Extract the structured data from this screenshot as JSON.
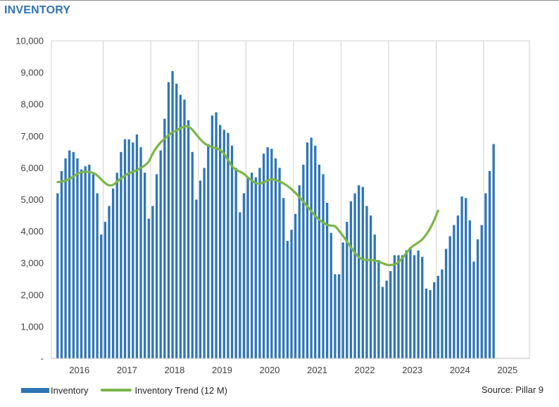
{
  "title": "INVENTORY",
  "source": "Source: Pillar 9",
  "colors": {
    "bars": "#2E75B6",
    "trend": "#7AB648",
    "title": "#2E75B6",
    "grid": "#d0d0d0"
  },
  "legend": {
    "bar_label": "Inventory",
    "line_label": "Inventory Trend (12 M)"
  },
  "chart_data": {
    "type": "bar",
    "title": "INVENTORY",
    "xlabel": "",
    "ylabel": "",
    "ylim": [
      0,
      10000
    ],
    "grid": "vertical lines at each year",
    "legend_position": "bottom",
    "y_ticks": [
      "-",
      "1,000",
      "2,000",
      "3,000",
      "4,000",
      "5,000",
      "6,000",
      "7,000",
      "8,000",
      "9,000",
      "10,000"
    ],
    "x_ticks": [
      "2016",
      "2017",
      "2018",
      "2019",
      "2020",
      "2021",
      "2022",
      "2023",
      "2024",
      "2025"
    ],
    "x_start": "2016-01",
    "series": [
      {
        "name": "Inventory",
        "type": "bar",
        "values": [
          5200,
          5900,
          6300,
          6550,
          6500,
          6300,
          5950,
          6050,
          6100,
          5800,
          5200,
          3900,
          4300,
          4800,
          5350,
          5850,
          6500,
          6900,
          6900,
          6800,
          7050,
          6650,
          5850,
          4400,
          4800,
          5800,
          6550,
          7550,
          8700,
          9050,
          8650,
          8300,
          8150,
          7500,
          6500,
          5000,
          5600,
          6000,
          6750,
          7650,
          7750,
          7350,
          7200,
          7100,
          6700,
          6000,
          4600,
          5200,
          5700,
          5850,
          5700,
          6000,
          6450,
          6650,
          6600,
          6300,
          6000,
          5050,
          3700,
          4050,
          4550,
          5450,
          6100,
          6800,
          6950,
          6700,
          6100,
          5800,
          4900,
          3950,
          2650,
          2650,
          3650,
          4300,
          4950,
          5200,
          5450,
          5400,
          4800,
          4500,
          3900,
          3100,
          2250,
          2450,
          2750,
          3250,
          3250,
          3250,
          3400,
          3500,
          3250,
          3400,
          3200,
          2200,
          2150,
          2400,
          2600,
          2800,
          3450,
          3850,
          4200,
          4500,
          5100,
          5050,
          4350,
          3050,
          3750,
          4200,
          5200,
          5900,
          6750
        ]
      },
      {
        "name": "Inventory Trend (12 M)",
        "type": "line",
        "values": [
          5550,
          5570,
          5600,
          5650,
          5730,
          5810,
          5860,
          5880,
          5870,
          5840,
          5760,
          5640,
          5520,
          5450,
          5470,
          5560,
          5670,
          5760,
          5830,
          5880,
          5930,
          6000,
          6080,
          6200,
          6450,
          6650,
          6800,
          6920,
          7030,
          7120,
          7180,
          7250,
          7300,
          7300,
          7200,
          7050,
          6900,
          6780,
          6700,
          6650,
          6620,
          6560,
          6450,
          6250,
          6050,
          5950,
          5880,
          5810,
          5700,
          5600,
          5520,
          5500,
          5550,
          5600,
          5640,
          5620,
          5570,
          5510,
          5430,
          5330,
          5210,
          5080,
          4940,
          4790,
          4640,
          4490,
          4370,
          4280,
          4210,
          4180,
          4160,
          4020,
          3860,
          3680,
          3500,
          3330,
          3190,
          3120,
          3100,
          3100,
          3080,
          3050,
          3000,
          2950,
          2940,
          2960,
          3030,
          3160,
          3320,
          3470,
          3570,
          3650,
          3750,
          3900,
          4100,
          4350,
          4650
        ]
      }
    ]
  }
}
